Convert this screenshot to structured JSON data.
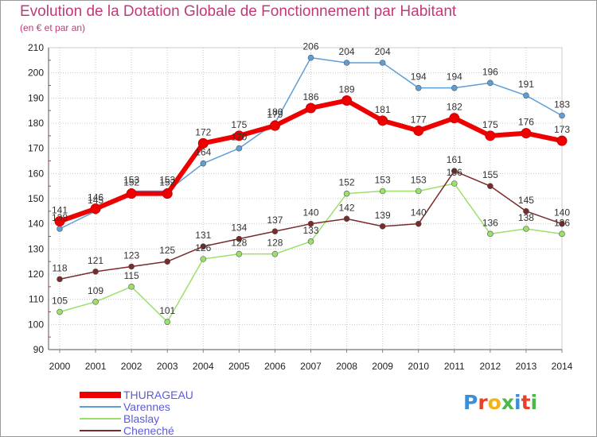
{
  "title": "Evolution de la Dotation Globale de Fonctionnement par Habitant",
  "subtitle": "(en € et par an)",
  "brand": "Proxiti",
  "chart_data": {
    "type": "line",
    "title": "Evolution de la Dotation Globale de Fonctionnement par Habitant",
    "subtitle": "(en € et par an)",
    "x": [
      "2000",
      "2001",
      "2002",
      "2003",
      "2004",
      "2005",
      "2006",
      "2007",
      "2008",
      "2009",
      "2010",
      "2011",
      "2012",
      "2013",
      "2014"
    ],
    "ylim": [
      90,
      210
    ],
    "yticks": [
      90,
      100,
      110,
      120,
      130,
      140,
      150,
      160,
      170,
      180,
      190,
      200,
      210
    ],
    "grid": true,
    "legend_position": "bottom-left",
    "series": [
      {
        "name": "THURAGEAU",
        "color": "#ee0000",
        "values": [
          141,
          146,
          152,
          152,
          172,
          175,
          179,
          186,
          189,
          181,
          177,
          182,
          175,
          176,
          173
        ]
      },
      {
        "name": "Varennes",
        "color": "#5e9ed6",
        "values": [
          138,
          145,
          153,
          153,
          164,
          170,
          180,
          206,
          204,
          204,
          194,
          194,
          196,
          191,
          183
        ]
      },
      {
        "name": "Blaslay",
        "color": "#9be06a",
        "values": [
          105,
          109,
          115,
          101,
          126,
          128,
          128,
          133,
          152,
          153,
          153,
          156,
          136,
          138,
          136
        ]
      },
      {
        "name": "Cheneché",
        "color": "#7a2a2a",
        "values": [
          118,
          121,
          123,
          125,
          131,
          134,
          137,
          140,
          142,
          139,
          140,
          161,
          155,
          145,
          140
        ]
      }
    ]
  }
}
